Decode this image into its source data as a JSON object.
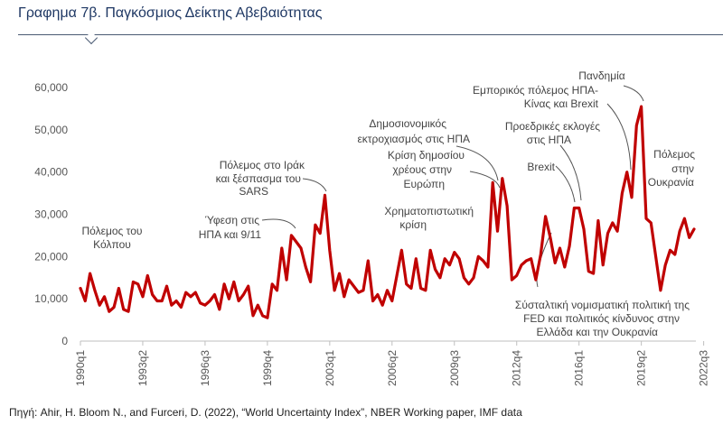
{
  "title": "Γραφημα 7β. Παγκόσμιος Δείκτης Αβεβαιότητας",
  "source": "Πηγή: Ahir, H. Bloom N., and Furceri, D. (2022), “World Uncertainty Index”, NBER Working paper, IMF data",
  "colors": {
    "line": "#c00000",
    "title": "#1f3864",
    "annotation_line": "#555555"
  },
  "chart_data": {
    "type": "line",
    "title": "Γραφημα 7β. Παγκόσμιος Δείκτης Αβεβαιότητας",
    "xlabel": "",
    "ylabel": "",
    "ylim": [
      0,
      60000
    ],
    "y_ticks": [
      "0",
      "10,000",
      "20,000",
      "30,000",
      "40,000",
      "50,000",
      "60,000"
    ],
    "x_tick_labels": [
      "1990q1",
      "1993q2",
      "1996q3",
      "1999q4",
      "2003q1",
      "2006q2",
      "2009q3",
      "2012q4",
      "2016q1",
      "2019q2",
      "2022q3"
    ],
    "x_range": [
      "1990q1",
      "2022q4"
    ],
    "grid": false,
    "series": [
      {
        "values": [
          12500,
          9500,
          16000,
          12000,
          8500,
          10500,
          7000,
          8000,
          12500,
          7500,
          7000,
          14000,
          13500,
          10500,
          15500,
          11000,
          9500,
          9500,
          13000,
          8500,
          9500,
          8000,
          11500,
          10500,
          11500,
          9000,
          8500,
          9500,
          11000,
          7500,
          13500,
          10000,
          14000,
          9500,
          11000,
          13000,
          6000,
          8500,
          6000,
          5500,
          13500,
          12000,
          22000,
          14500,
          25000,
          23500,
          22000,
          17500,
          14000,
          27500,
          25500,
          34500,
          21500,
          12000,
          16000,
          10500,
          14500,
          13000,
          11500,
          12000,
          19000,
          9500,
          11000,
          8500,
          12000,
          9500,
          15500,
          21500,
          13500,
          12500,
          19500,
          12500,
          12000,
          21500,
          17000,
          15000,
          19500,
          18000,
          21000,
          19500,
          15000,
          13500,
          15000,
          20000,
          19000,
          17500,
          37500,
          26000,
          38500,
          32000,
          14500,
          15500,
          18000,
          19000,
          19500,
          14500,
          20500,
          29500,
          24500,
          18500,
          22000,
          17500,
          22500,
          31500,
          31500,
          26500,
          16500,
          16000,
          28500,
          18000,
          25500,
          28000,
          26000,
          35000,
          40000,
          34000,
          51000,
          55500,
          29000,
          28000,
          20000,
          12000,
          18000,
          21500,
          20500,
          26000,
          29000,
          24500,
          26500
        ]
      }
    ],
    "annotations": [
      "Πόλεμος του Κόλπου",
      "Ύφεση στις ΗΠΑ και 9/11",
      "Πόλεμος στο Ιράκ και ξέσπασμα του SARS",
      "Χρηματοπιστωτική κρίση",
      "Δημοσιονομικός εκτροχιασμός στις ΗΠΑ",
      "Κρίση δημοσίου χρέους στην Ευρώπη",
      "Εμπορικός πόλεμος ΗΠΑ-Κίνας και Brexit",
      "Προεδρικές εκλογές στις ΗΠΑ",
      "Brexit",
      "Πανδημία",
      "Πόλεμος στην Ουκρανία",
      "Σύσταλτική νομισματική πολιτική της FED και πολιτικός κίνδυνος στην Ελλάδα και την Ουκρανία"
    ]
  }
}
